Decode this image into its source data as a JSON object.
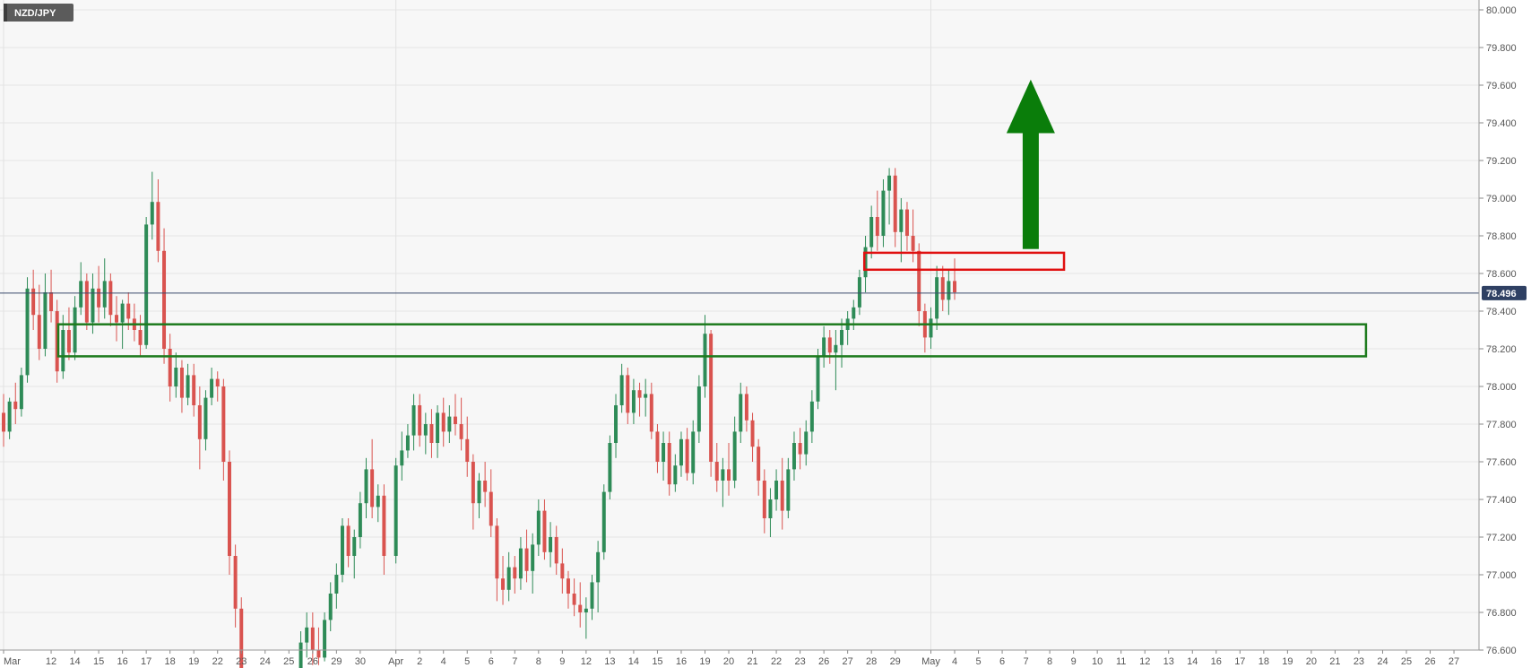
{
  "chart_data": {
    "type": "candlestick",
    "symbol": "NZD/JPY",
    "colors": {
      "up": "#2e8b57",
      "down": "#d9534f",
      "grid": "#e6e6e6",
      "current_line": "#3b4a6b",
      "current_badge": "#2f4063",
      "symbol_badge": "#5b5b5b",
      "resistance_box": "#e01010",
      "support_box": "#1e7b1e",
      "arrow": "#0a7d0a"
    },
    "y_axis": {
      "min": 76.5,
      "max": 80.0,
      "ticks": [
        "80.000",
        "79.800",
        "79.600",
        "79.400",
        "79.200",
        "79.000",
        "78.800",
        "78.600",
        "78.400",
        "78.200",
        "78.000",
        "77.800",
        "77.600",
        "77.400",
        "77.200",
        "77.000",
        "76.800",
        "76.600"
      ]
    },
    "current_price": "78.496",
    "x_axis": {
      "labels": [
        "Mar",
        "12",
        "14",
        "15",
        "16",
        "17",
        "18",
        "19",
        "22",
        "23",
        "24",
        "25",
        "26",
        "29",
        "30",
        "Apr",
        "2",
        "4",
        "5",
        "6",
        "7",
        "8",
        "9",
        "12",
        "13",
        "14",
        "15",
        "16",
        "19",
        "20",
        "21",
        "22",
        "23",
        "26",
        "27",
        "28",
        "29",
        "May",
        "4",
        "5",
        "6",
        "7",
        "8",
        "9",
        "10",
        "11",
        "12",
        "13",
        "14",
        "16",
        "17",
        "18",
        "19",
        "20",
        "21",
        "23",
        "24",
        "25",
        "26",
        "27"
      ],
      "positions": [
        0,
        2,
        3,
        4,
        5,
        6,
        7,
        8,
        9,
        10,
        11,
        12,
        13,
        14,
        15,
        16.5,
        17.5,
        18.5,
        19.5,
        20.5,
        21.5,
        22.5,
        23.5,
        24.5,
        25.5,
        26.5,
        27.5,
        28.5,
        29.5,
        30.5,
        31.5,
        32.5,
        33.5,
        34.5,
        35.5,
        36.5,
        37.5,
        39,
        40,
        41,
        42,
        43,
        44,
        45,
        46,
        47,
        48,
        49,
        50,
        51,
        52,
        53,
        54,
        55,
        56,
        57,
        58,
        59,
        60,
        61
      ],
      "range": [
        0,
        61.3
      ]
    },
    "candles": [
      [
        0.0,
        77.86,
        77.96,
        77.68,
        77.76
      ],
      [
        0.25,
        77.76,
        77.94,
        77.72,
        77.92
      ],
      [
        0.5,
        77.92,
        78.02,
        77.8,
        77.88
      ],
      [
        0.75,
        77.88,
        78.1,
        77.84,
        78.06
      ],
      [
        1.0,
        78.06,
        78.58,
        78.02,
        78.52
      ],
      [
        1.25,
        78.52,
        78.62,
        78.3,
        78.38
      ],
      [
        1.5,
        78.38,
        78.54,
        78.14,
        78.2
      ],
      [
        1.75,
        78.2,
        78.6,
        78.16,
        78.5
      ],
      [
        2.0,
        78.5,
        78.62,
        78.34,
        78.4
      ],
      [
        2.25,
        78.4,
        78.46,
        78.02,
        78.08
      ],
      [
        2.5,
        78.08,
        78.38,
        78.04,
        78.3
      ],
      [
        2.75,
        78.3,
        78.42,
        78.14,
        78.18
      ],
      [
        3.0,
        78.18,
        78.48,
        78.14,
        78.42
      ],
      [
        3.25,
        78.42,
        78.66,
        78.38,
        78.56
      ],
      [
        3.5,
        78.56,
        78.6,
        78.3,
        78.34
      ],
      [
        3.75,
        78.34,
        78.6,
        78.28,
        78.52
      ],
      [
        4.0,
        78.52,
        78.64,
        78.34,
        78.42
      ],
      [
        4.25,
        78.42,
        78.68,
        78.36,
        78.56
      ],
      [
        4.5,
        78.56,
        78.6,
        78.32,
        78.38
      ],
      [
        4.75,
        78.38,
        78.48,
        78.24,
        78.34
      ],
      [
        5.0,
        78.34,
        78.46,
        78.2,
        78.44
      ],
      [
        5.25,
        78.44,
        78.5,
        78.3,
        78.36
      ],
      [
        5.5,
        78.36,
        78.44,
        78.24,
        78.3
      ],
      [
        5.75,
        78.3,
        78.38,
        78.16,
        78.22
      ],
      [
        6.0,
        78.22,
        78.9,
        78.2,
        78.86
      ],
      [
        6.25,
        78.86,
        79.14,
        78.78,
        78.98
      ],
      [
        6.5,
        78.98,
        79.1,
        78.66,
        78.72
      ],
      [
        6.75,
        78.72,
        78.84,
        78.12,
        78.2
      ],
      [
        7.0,
        78.2,
        78.28,
        77.92,
        78.0
      ],
      [
        7.25,
        78.0,
        78.18,
        77.94,
        78.1
      ],
      [
        7.5,
        78.1,
        78.14,
        77.86,
        77.94
      ],
      [
        7.75,
        77.94,
        78.12,
        77.9,
        78.06
      ],
      [
        8.0,
        78.06,
        78.12,
        77.84,
        77.9
      ],
      [
        8.25,
        77.9,
        78.0,
        77.56,
        77.72
      ],
      [
        8.5,
        77.72,
        77.98,
        77.66,
        77.94
      ],
      [
        8.75,
        77.94,
        78.1,
        77.9,
        78.04
      ],
      [
        9.0,
        78.04,
        78.08,
        77.92,
        78.0
      ],
      [
        9.25,
        78.0,
        78.04,
        77.5,
        77.6
      ],
      [
        9.5,
        77.6,
        77.66,
        77.0,
        77.1
      ],
      [
        9.75,
        77.1,
        77.16,
        76.72,
        76.82
      ],
      [
        10.0,
        76.82,
        76.88,
        76.5,
        76.5
      ],
      [
        12.5,
        76.5,
        76.7,
        76.5,
        76.64
      ],
      [
        12.75,
        76.64,
        76.8,
        76.56,
        76.72
      ],
      [
        13.0,
        76.72,
        76.8,
        76.52,
        76.6
      ],
      [
        13.25,
        76.6,
        76.72,
        76.52,
        76.56
      ],
      [
        13.5,
        76.56,
        76.8,
        76.54,
        76.76
      ],
      [
        13.75,
        76.76,
        76.96,
        76.7,
        76.9
      ],
      [
        14.0,
        76.9,
        77.06,
        76.82,
        77.0
      ],
      [
        14.25,
        77.0,
        77.3,
        76.96,
        77.26
      ],
      [
        14.5,
        77.26,
        77.3,
        77.04,
        77.1
      ],
      [
        14.75,
        77.1,
        77.24,
        76.98,
        77.2
      ],
      [
        15.0,
        77.2,
        77.44,
        77.14,
        77.38
      ],
      [
        15.25,
        77.38,
        77.62,
        77.3,
        77.56
      ],
      [
        15.5,
        77.56,
        77.72,
        77.3,
        77.36
      ],
      [
        15.75,
        77.36,
        77.48,
        77.28,
        77.42
      ],
      [
        16.0,
        77.42,
        77.48,
        77.0,
        77.1
      ],
      [
        16.5,
        77.1,
        77.62,
        77.06,
        77.58
      ],
      [
        16.75,
        77.58,
        77.76,
        77.5,
        77.66
      ],
      [
        17.0,
        77.66,
        77.8,
        77.62,
        77.74
      ],
      [
        17.25,
        77.74,
        77.96,
        77.66,
        77.9
      ],
      [
        17.5,
        77.9,
        77.96,
        77.68,
        77.74
      ],
      [
        17.75,
        77.74,
        77.86,
        77.64,
        77.8
      ],
      [
        18.0,
        77.8,
        77.88,
        77.62,
        77.7
      ],
      [
        18.25,
        77.7,
        77.9,
        77.62,
        77.86
      ],
      [
        18.5,
        77.86,
        77.94,
        77.68,
        77.76
      ],
      [
        18.75,
        77.76,
        77.9,
        77.7,
        77.84
      ],
      [
        19.0,
        77.84,
        77.96,
        77.74,
        77.8
      ],
      [
        19.25,
        77.8,
        77.94,
        77.66,
        77.72
      ],
      [
        19.5,
        77.72,
        77.84,
        77.52,
        77.6
      ],
      [
        19.75,
        77.6,
        77.64,
        77.24,
        77.38
      ],
      [
        20.0,
        77.38,
        77.54,
        77.3,
        77.5
      ],
      [
        20.25,
        77.5,
        77.6,
        77.36,
        77.44
      ],
      [
        20.5,
        77.44,
        77.56,
        77.2,
        77.26
      ],
      [
        20.75,
        77.26,
        77.3,
        76.86,
        76.98
      ],
      [
        21.0,
        76.98,
        77.1,
        76.84,
        76.92
      ],
      [
        21.25,
        76.92,
        77.12,
        76.86,
        77.04
      ],
      [
        21.5,
        77.04,
        77.1,
        76.9,
        76.98
      ],
      [
        21.75,
        76.98,
        77.2,
        76.92,
        77.14
      ],
      [
        22.0,
        77.14,
        77.24,
        76.96,
        77.02
      ],
      [
        22.25,
        77.02,
        77.22,
        76.9,
        77.16
      ],
      [
        22.5,
        77.16,
        77.4,
        77.1,
        77.34
      ],
      [
        22.75,
        77.34,
        77.4,
        77.08,
        77.12
      ],
      [
        23.0,
        77.12,
        77.28,
        77.04,
        77.2
      ],
      [
        23.25,
        77.2,
        77.26,
        77.0,
        77.06
      ],
      [
        23.5,
        77.06,
        77.14,
        76.9,
        76.98
      ],
      [
        23.75,
        76.98,
        77.02,
        76.82,
        76.9
      ],
      [
        24.0,
        76.9,
        76.98,
        76.78,
        76.84
      ],
      [
        24.25,
        76.84,
        76.96,
        76.72,
        76.8
      ],
      [
        24.5,
        76.8,
        76.88,
        76.66,
        76.82
      ],
      [
        24.75,
        76.82,
        77.0,
        76.76,
        76.96
      ],
      [
        25.0,
        76.96,
        77.18,
        76.8,
        77.12
      ],
      [
        25.25,
        77.12,
        77.48,
        77.08,
        77.44
      ],
      [
        25.5,
        77.44,
        77.74,
        77.4,
        77.7
      ],
      [
        25.75,
        77.7,
        77.96,
        77.62,
        77.9
      ],
      [
        26.0,
        77.9,
        78.12,
        77.86,
        78.06
      ],
      [
        26.25,
        78.06,
        78.1,
        77.8,
        77.86
      ],
      [
        26.5,
        77.86,
        78.04,
        77.8,
        77.98
      ],
      [
        26.75,
        77.98,
        78.02,
        77.84,
        77.94
      ],
      [
        27.0,
        77.94,
        78.04,
        77.84,
        77.96
      ],
      [
        27.25,
        77.96,
        78.02,
        77.72,
        77.76
      ],
      [
        27.5,
        77.76,
        77.8,
        77.54,
        77.6
      ],
      [
        27.75,
        77.6,
        77.76,
        77.5,
        77.7
      ],
      [
        28.0,
        77.7,
        77.76,
        77.42,
        77.48
      ],
      [
        28.25,
        77.48,
        77.64,
        77.44,
        77.58
      ],
      [
        28.5,
        77.58,
        77.76,
        77.52,
        77.72
      ],
      [
        28.75,
        77.72,
        77.78,
        77.5,
        77.54
      ],
      [
        29.0,
        77.54,
        77.82,
        77.48,
        77.76
      ],
      [
        29.25,
        77.76,
        78.06,
        77.7,
        78.0
      ],
      [
        29.5,
        78.0,
        78.38,
        77.94,
        78.28
      ],
      [
        29.75,
        78.28,
        78.3,
        77.52,
        77.6
      ],
      [
        30.0,
        77.6,
        77.7,
        77.44,
        77.5
      ],
      [
        30.25,
        77.5,
        77.62,
        77.36,
        77.56
      ],
      [
        30.5,
        77.56,
        77.7,
        77.42,
        77.5
      ],
      [
        30.75,
        77.5,
        77.84,
        77.46,
        77.76
      ],
      [
        31.0,
        77.76,
        78.02,
        77.7,
        77.96
      ],
      [
        31.25,
        77.96,
        78.0,
        77.76,
        77.82
      ],
      [
        31.5,
        77.82,
        77.86,
        77.6,
        77.68
      ],
      [
        31.75,
        77.68,
        77.72,
        77.42,
        77.5
      ],
      [
        32.0,
        77.5,
        77.56,
        77.22,
        77.3
      ],
      [
        32.25,
        77.3,
        77.46,
        77.2,
        77.4
      ],
      [
        32.5,
        77.4,
        77.56,
        77.34,
        77.5
      ],
      [
        32.75,
        77.5,
        77.62,
        77.24,
        77.34
      ],
      [
        33.0,
        77.34,
        77.62,
        77.3,
        77.56
      ],
      [
        33.25,
        77.56,
        77.76,
        77.5,
        77.7
      ],
      [
        33.5,
        77.7,
        77.78,
        77.56,
        77.64
      ],
      [
        33.75,
        77.64,
        77.82,
        77.58,
        77.76
      ],
      [
        34.0,
        77.76,
        77.98,
        77.7,
        77.92
      ],
      [
        34.25,
        77.92,
        78.2,
        77.88,
        78.16
      ],
      [
        34.5,
        78.16,
        78.32,
        78.1,
        78.26
      ],
      [
        34.75,
        78.26,
        78.3,
        78.12,
        78.18
      ],
      [
        35.0,
        78.18,
        78.3,
        77.98,
        78.22
      ],
      [
        35.25,
        78.22,
        78.36,
        78.1,
        78.3
      ],
      [
        35.5,
        78.3,
        78.4,
        78.22,
        78.36
      ],
      [
        35.75,
        78.36,
        78.46,
        78.3,
        78.42
      ],
      [
        36.0,
        78.42,
        78.62,
        78.38,
        78.58
      ],
      [
        36.25,
        78.58,
        78.8,
        78.5,
        78.74
      ],
      [
        36.5,
        78.74,
        78.96,
        78.68,
        78.9
      ],
      [
        36.75,
        78.9,
        79.04,
        78.72,
        78.8
      ],
      [
        37.0,
        78.8,
        79.1,
        78.74,
        79.04
      ],
      [
        37.25,
        79.04,
        79.16,
        78.86,
        79.12
      ],
      [
        37.5,
        79.12,
        79.16,
        78.74,
        78.82
      ],
      [
        37.75,
        78.82,
        79.0,
        78.66,
        78.94
      ],
      [
        38.0,
        78.94,
        78.98,
        78.72,
        78.8
      ],
      [
        38.25,
        78.8,
        78.94,
        78.66,
        78.72
      ],
      [
        38.5,
        78.72,
        78.76,
        78.32,
        78.4
      ],
      [
        38.75,
        78.4,
        78.44,
        78.18,
        78.26
      ],
      [
        39.0,
        78.26,
        78.42,
        78.2,
        78.36
      ],
      [
        39.25,
        78.36,
        78.64,
        78.3,
        78.58
      ],
      [
        39.5,
        78.58,
        78.64,
        78.4,
        78.46
      ],
      [
        39.75,
        78.46,
        78.62,
        78.38,
        78.56
      ],
      [
        40.0,
        78.56,
        78.68,
        78.46,
        78.5
      ]
    ]
  }
}
